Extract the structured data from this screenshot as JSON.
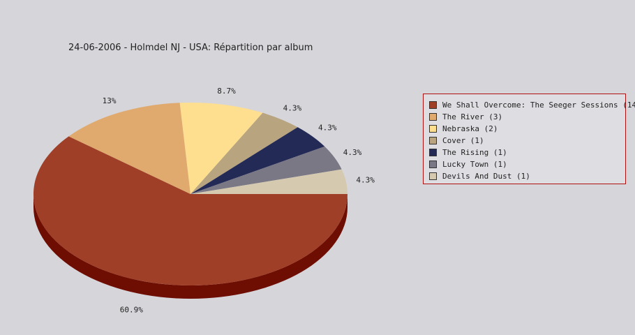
{
  "chart_data": {
    "type": "pie",
    "title": "24-06-2006 - Holmdel NJ - USA:  Répartition par album",
    "slices": [
      {
        "label": "We Shall Overcome: The Seeger Sessions (14)",
        "value": 14,
        "percent_label": "60.9%",
        "color": "#a03f27",
        "side_color": "#6e0d02"
      },
      {
        "label": "The River (3)",
        "value": 3,
        "percent_label": "13%",
        "color": "#e0a96e",
        "side_color": "#a97744"
      },
      {
        "label": "Nebraska (2)",
        "value": 2,
        "percent_label": "8.7%",
        "color": "#fede8f",
        "side_color": "#c7a95c"
      },
      {
        "label": "Cover (1)",
        "value": 1,
        "percent_label": "4.3%",
        "color": "#b8a47e",
        "side_color": "#857252"
      },
      {
        "label": "The Rising (1)",
        "value": 1,
        "percent_label": "4.3%",
        "color": "#232a56",
        "side_color": "#10152e"
      },
      {
        "label": "Lucky Town (1)",
        "value": 1,
        "percent_label": "4.3%",
        "color": "#7b7886",
        "side_color": "#4f4c58"
      },
      {
        "label": "Devils And Dust (1)",
        "value": 1,
        "percent_label": "4.3%",
        "color": "#d5cab0",
        "side_color": "#9e957f"
      }
    ],
    "legend_placement": "right"
  }
}
